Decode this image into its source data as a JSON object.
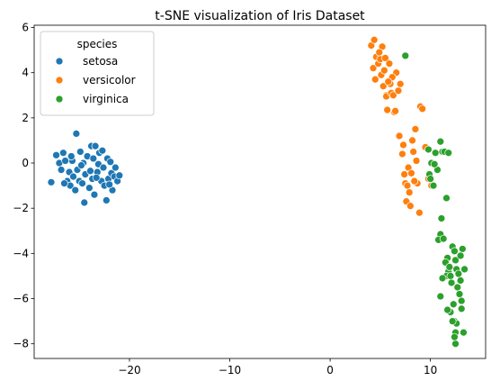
{
  "chart_data": {
    "type": "scatter",
    "title": "t-SNE visualization of Iris Dataset",
    "xlabel": "",
    "ylabel": "",
    "xlim": [
      -29.5,
      15.5
    ],
    "ylim": [
      -8.65,
      6.1
    ],
    "x_ticks": [
      -20,
      -10,
      0,
      10
    ],
    "x_tick_labels": [
      "−20",
      "−10",
      "0",
      "10"
    ],
    "y_ticks": [
      -8,
      -6,
      -4,
      -2,
      0,
      2,
      4,
      6
    ],
    "y_tick_labels": [
      "−8",
      "−6",
      "−4",
      "−2",
      "0",
      "2",
      "4",
      "6"
    ],
    "grid": false,
    "legend": {
      "title": "species",
      "placement": "upper-left",
      "entries": [
        "setosa",
        "versicolor",
        "virginica"
      ]
    },
    "series": [
      {
        "name": "setosa",
        "color": "#1f77b4",
        "points": [
          [
            -27.8,
            -0.85
          ],
          [
            -27.3,
            0.35
          ],
          [
            -27.0,
            0.0
          ],
          [
            -26.8,
            -0.3
          ],
          [
            -26.6,
            0.45
          ],
          [
            -26.4,
            0.1
          ],
          [
            -26.2,
            -0.8
          ],
          [
            -26.0,
            -0.4
          ],
          [
            -25.9,
            -1.0
          ],
          [
            -25.7,
            0.1
          ],
          [
            -25.6,
            -0.6
          ],
          [
            -25.4,
            -1.2
          ],
          [
            -25.3,
            1.3
          ],
          [
            -25.2,
            -0.3
          ],
          [
            -25.0,
            -0.8
          ],
          [
            -24.9,
            0.5
          ],
          [
            -24.7,
            -0.9
          ],
          [
            -24.6,
            0.0
          ],
          [
            -24.5,
            -1.75
          ],
          [
            -24.4,
            -0.5
          ],
          [
            -24.2,
            0.3
          ],
          [
            -24.0,
            -1.1
          ],
          [
            -23.9,
            -0.35
          ],
          [
            -23.8,
            0.75
          ],
          [
            -23.7,
            -0.7
          ],
          [
            -23.6,
            0.2
          ],
          [
            -23.5,
            -1.4
          ],
          [
            -23.4,
            0.75
          ],
          [
            -23.2,
            -0.4
          ],
          [
            -23.1,
            -0.05
          ],
          [
            -23.0,
            0.45
          ],
          [
            -22.8,
            -0.8
          ],
          [
            -22.7,
            0.55
          ],
          [
            -22.6,
            -0.2
          ],
          [
            -22.5,
            -1.0
          ],
          [
            -22.3,
            -1.65
          ],
          [
            -22.2,
            0.2
          ],
          [
            -22.1,
            -0.7
          ],
          [
            -21.9,
            0.05
          ],
          [
            -21.8,
            -0.45
          ],
          [
            -21.7,
            -1.2
          ],
          [
            -21.5,
            -0.6
          ],
          [
            -21.4,
            -0.2
          ],
          [
            -21.2,
            -0.8
          ],
          [
            -21.0,
            -0.55
          ],
          [
            -26.5,
            -0.9
          ],
          [
            -25.8,
            0.3
          ],
          [
            -23.3,
            -0.65
          ],
          [
            -24.8,
            -0.1
          ],
          [
            -22.0,
            -0.95
          ]
        ]
      },
      {
        "name": "versicolor",
        "color": "#ff7f0e",
        "points": [
          [
            4.1,
            5.2
          ],
          [
            4.4,
            5.45
          ],
          [
            4.3,
            4.2
          ],
          [
            4.6,
            4.7
          ],
          [
            4.5,
            3.7
          ],
          [
            4.8,
            4.4
          ],
          [
            5.0,
            4.6
          ],
          [
            5.2,
            5.15
          ],
          [
            5.1,
            3.9
          ],
          [
            5.4,
            4.1
          ],
          [
            5.3,
            3.4
          ],
          [
            5.5,
            4.65
          ],
          [
            5.6,
            3.0
          ],
          [
            5.7,
            2.35
          ],
          [
            5.6,
            2.95
          ],
          [
            6.0,
            3.5
          ],
          [
            6.1,
            3.1
          ],
          [
            6.3,
            3.0
          ],
          [
            6.4,
            2.25
          ],
          [
            6.6,
            4.0
          ],
          [
            6.2,
            3.8
          ],
          [
            7.0,
            3.5
          ],
          [
            6.9,
            1.2
          ],
          [
            7.2,
            0.4
          ],
          [
            7.4,
            -0.5
          ],
          [
            7.5,
            -0.9
          ],
          [
            7.7,
            -1.0
          ],
          [
            7.6,
            -1.7
          ],
          [
            7.8,
            -0.2
          ],
          [
            8.0,
            -1.9
          ],
          [
            8.2,
            1.0
          ],
          [
            8.3,
            0.5
          ],
          [
            8.5,
            1.5
          ],
          [
            8.1,
            -0.45
          ],
          [
            8.7,
            -0.9
          ],
          [
            8.9,
            -2.2
          ],
          [
            9.0,
            2.5
          ],
          [
            9.2,
            2.4
          ],
          [
            9.5,
            0.7
          ],
          [
            9.8,
            -0.7
          ],
          [
            10.1,
            -1.0
          ],
          [
            6.5,
            2.3
          ],
          [
            5.8,
            3.6
          ],
          [
            7.3,
            0.8
          ],
          [
            8.6,
            0.1
          ],
          [
            4.9,
            4.9
          ],
          [
            5.9,
            4.4
          ],
          [
            6.8,
            3.2
          ],
          [
            7.9,
            -1.3
          ],
          [
            8.4,
            -0.8
          ]
        ]
      },
      {
        "name": "virginica",
        "color": "#2ca02c",
        "points": [
          [
            7.5,
            4.75
          ],
          [
            9.8,
            0.6
          ],
          [
            10.1,
            0.0
          ],
          [
            9.9,
            -0.5
          ],
          [
            10.0,
            -0.7
          ],
          [
            10.3,
            -1.0
          ],
          [
            10.5,
            0.45
          ],
          [
            10.7,
            -0.3
          ],
          [
            11.0,
            0.95
          ],
          [
            11.2,
            0.5
          ],
          [
            11.4,
            0.5
          ],
          [
            11.6,
            -1.55
          ],
          [
            11.8,
            0.45
          ],
          [
            11.1,
            -2.45
          ],
          [
            11.0,
            -3.15
          ],
          [
            10.8,
            -3.4
          ],
          [
            11.3,
            -3.35
          ],
          [
            11.7,
            -4.2
          ],
          [
            11.5,
            -4.4
          ],
          [
            11.8,
            -4.8
          ],
          [
            11.6,
            -5.0
          ],
          [
            11.2,
            -5.1
          ],
          [
            12.0,
            -5.0
          ],
          [
            12.2,
            -3.7
          ],
          [
            12.4,
            -3.9
          ],
          [
            12.5,
            -4.3
          ],
          [
            12.6,
            -4.7
          ],
          [
            12.8,
            -4.9
          ],
          [
            13.0,
            -5.2
          ],
          [
            13.2,
            -3.8
          ],
          [
            13.4,
            -4.7
          ],
          [
            12.7,
            -5.5
          ],
          [
            12.9,
            -5.8
          ],
          [
            13.1,
            -6.1
          ],
          [
            11.0,
            -5.9
          ],
          [
            12.0,
            -6.6
          ],
          [
            11.7,
            -6.5
          ],
          [
            12.3,
            -6.25
          ],
          [
            12.4,
            -7.0
          ],
          [
            12.6,
            -7.1
          ],
          [
            12.2,
            -7.0
          ],
          [
            12.5,
            -7.5
          ],
          [
            12.5,
            -8.0
          ],
          [
            12.4,
            -7.7
          ],
          [
            13.3,
            -7.5
          ],
          [
            13.1,
            -6.45
          ],
          [
            11.9,
            -4.6
          ],
          [
            12.1,
            -5.3
          ],
          [
            13.0,
            -4.1
          ],
          [
            10.4,
            -0.05
          ]
        ]
      }
    ]
  }
}
